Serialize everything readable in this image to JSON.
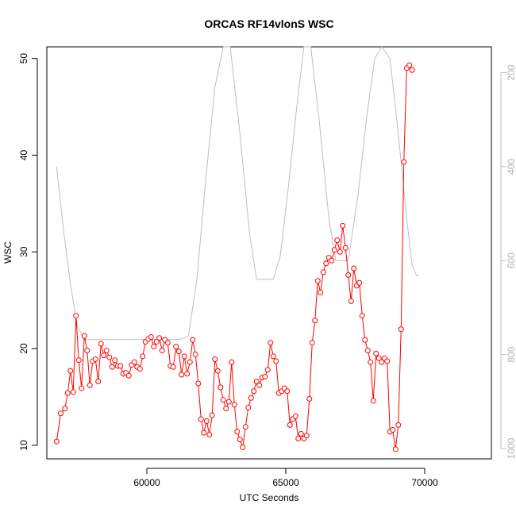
{
  "chart_data": {
    "type": "line",
    "title": "ORCAS RF14vlonS WSC",
    "xlabel": "UTC Seconds",
    "ylabel": "WSC",
    "xlim": [
      56400,
      72400
    ],
    "ylim": [
      8.6,
      51.2
    ],
    "x_ticks": [
      60000,
      65000,
      70000
    ],
    "y_ticks": [
      10,
      20,
      30,
      40,
      50
    ],
    "y2_ticks": [
      200,
      400,
      600,
      800,
      1000
    ],
    "y2lim_reversed": [
      1022,
      145
    ],
    "grid": false,
    "legend": "none",
    "colors": {
      "primary": "#ff0000",
      "secondary": "#bebebe"
    },
    "series": [
      {
        "axis": "left",
        "marker": "open-circle",
        "color": "#ff0000",
        "points": [
          [
            56750,
            10.4
          ],
          [
            56900,
            13.3
          ],
          [
            57050,
            13.8
          ],
          [
            57150,
            15.4
          ],
          [
            57250,
            17.7
          ],
          [
            57350,
            15.5
          ],
          [
            57450,
            23.4
          ],
          [
            57550,
            18.8
          ],
          [
            57650,
            15.9
          ],
          [
            57750,
            21.3
          ],
          [
            57850,
            19.8
          ],
          [
            57950,
            16.2
          ],
          [
            58050,
            18.7
          ],
          [
            58150,
            18.9
          ],
          [
            58250,
            16.6
          ],
          [
            58350,
            20.5
          ],
          [
            58450,
            19.3
          ],
          [
            58550,
            19.8
          ],
          [
            58650,
            19.1
          ],
          [
            58750,
            18.1
          ],
          [
            58850,
            18.8
          ],
          [
            58950,
            18.2
          ],
          [
            59050,
            18.2
          ],
          [
            59150,
            17.4
          ],
          [
            59250,
            17.5
          ],
          [
            59350,
            17.2
          ],
          [
            59450,
            18.3
          ],
          [
            59550,
            18.6
          ],
          [
            59650,
            18.1
          ],
          [
            59750,
            17.9
          ],
          [
            59850,
            19.2
          ],
          [
            59950,
            20.7
          ],
          [
            60050,
            21.0
          ],
          [
            60150,
            21.2
          ],
          [
            60250,
            20.2
          ],
          [
            60350,
            20.7
          ],
          [
            60450,
            21.1
          ],
          [
            60550,
            19.8
          ],
          [
            60650,
            20.9
          ],
          [
            60750,
            20.6
          ],
          [
            60850,
            18.2
          ],
          [
            60950,
            18.1
          ],
          [
            61050,
            20.2
          ],
          [
            61150,
            19.7
          ],
          [
            61250,
            17.3
          ],
          [
            61350,
            19.2
          ],
          [
            61450,
            17.4
          ],
          [
            61550,
            18.6
          ],
          [
            61650,
            20.9
          ],
          [
            61750,
            19.4
          ],
          [
            61850,
            16.4
          ],
          [
            61950,
            12.7
          ],
          [
            62050,
            11.3
          ],
          [
            62150,
            12.5
          ],
          [
            62250,
            11.1
          ],
          [
            62350,
            13.1
          ],
          [
            62450,
            18.9
          ],
          [
            62550,
            17.7
          ],
          [
            62650,
            16.0
          ],
          [
            62750,
            14.7
          ],
          [
            62850,
            13.8
          ],
          [
            62950,
            14.5
          ],
          [
            63050,
            18.6
          ],
          [
            63150,
            14.2
          ],
          [
            63250,
            11.4
          ],
          [
            63350,
            10.6
          ],
          [
            63450,
            9.8
          ],
          [
            63550,
            11.9
          ],
          [
            63650,
            13.9
          ],
          [
            63750,
            14.9
          ],
          [
            63850,
            15.6
          ],
          [
            63950,
            16.6
          ],
          [
            64050,
            16.2
          ],
          [
            64150,
            17.0
          ],
          [
            64250,
            17.1
          ],
          [
            64350,
            17.8
          ],
          [
            64450,
            20.6
          ],
          [
            64550,
            19.2
          ],
          [
            64650,
            18.7
          ],
          [
            64750,
            15.4
          ],
          [
            64850,
            15.6
          ],
          [
            64950,
            15.9
          ],
          [
            65050,
            15.6
          ],
          [
            65150,
            12.1
          ],
          [
            65250,
            12.7
          ],
          [
            65350,
            13.0
          ],
          [
            65450,
            10.7
          ],
          [
            65550,
            11.2
          ],
          [
            65650,
            10.7
          ],
          [
            65750,
            11.0
          ],
          [
            65850,
            14.8
          ],
          [
            65950,
            20.6
          ],
          [
            66050,
            22.9
          ],
          [
            66150,
            27.0
          ],
          [
            66250,
            25.8
          ],
          [
            66350,
            27.9
          ],
          [
            66450,
            28.8
          ],
          [
            66550,
            29.4
          ],
          [
            66650,
            29.1
          ],
          [
            66750,
            30.2
          ],
          [
            66850,
            31.2
          ],
          [
            66950,
            30.0
          ],
          [
            67050,
            32.7
          ],
          [
            67150,
            30.4
          ],
          [
            67250,
            27.6
          ],
          [
            67350,
            24.9
          ],
          [
            67450,
            28.3
          ],
          [
            67550,
            26.5
          ],
          [
            67650,
            26.8
          ],
          [
            67750,
            23.4
          ],
          [
            67850,
            20.9
          ],
          [
            67950,
            19.8
          ],
          [
            68050,
            18.6
          ],
          [
            68150,
            14.6
          ],
          [
            68250,
            19.5
          ],
          [
            68350,
            19.0
          ],
          [
            68450,
            18.6
          ],
          [
            68550,
            19.0
          ],
          [
            68650,
            18.7
          ],
          [
            68750,
            11.4
          ],
          [
            68850,
            11.6
          ],
          [
            68950,
            9.6
          ],
          [
            69050,
            12.1
          ],
          [
            69150,
            22.0
          ],
          [
            69250,
            39.3
          ],
          [
            69350,
            49.0
          ],
          [
            69450,
            49.3
          ],
          [
            69550,
            48.8
          ]
        ]
      },
      {
        "axis": "right",
        "marker": "none",
        "color": "#bebebe",
        "points": [
          [
            56750,
            400
          ],
          [
            57000,
            535
          ],
          [
            57250,
            650
          ],
          [
            57500,
            740
          ],
          [
            57750,
            768
          ],
          [
            58500,
            768
          ],
          [
            59500,
            768
          ],
          [
            60500,
            768
          ],
          [
            61200,
            768
          ],
          [
            61500,
            760
          ],
          [
            61800,
            640
          ],
          [
            62100,
            440
          ],
          [
            62450,
            230
          ],
          [
            62750,
            145
          ],
          [
            63000,
            145
          ],
          [
            63350,
            330
          ],
          [
            63700,
            545
          ],
          [
            63950,
            640
          ],
          [
            64250,
            640
          ],
          [
            64550,
            640
          ],
          [
            64800,
            590
          ],
          [
            65100,
            440
          ],
          [
            65400,
            270
          ],
          [
            65650,
            145
          ],
          [
            65900,
            145
          ],
          [
            66200,
            300
          ],
          [
            66550,
            510
          ],
          [
            66800,
            600
          ],
          [
            67100,
            600
          ],
          [
            67250,
            600
          ],
          [
            67600,
            460
          ],
          [
            67900,
            300
          ],
          [
            68200,
            170
          ],
          [
            68450,
            145
          ],
          [
            68750,
            170
          ],
          [
            69050,
            330
          ],
          [
            69350,
            510
          ],
          [
            69550,
            610
          ],
          [
            69700,
            632
          ],
          [
            69800,
            632
          ]
        ]
      }
    ]
  }
}
